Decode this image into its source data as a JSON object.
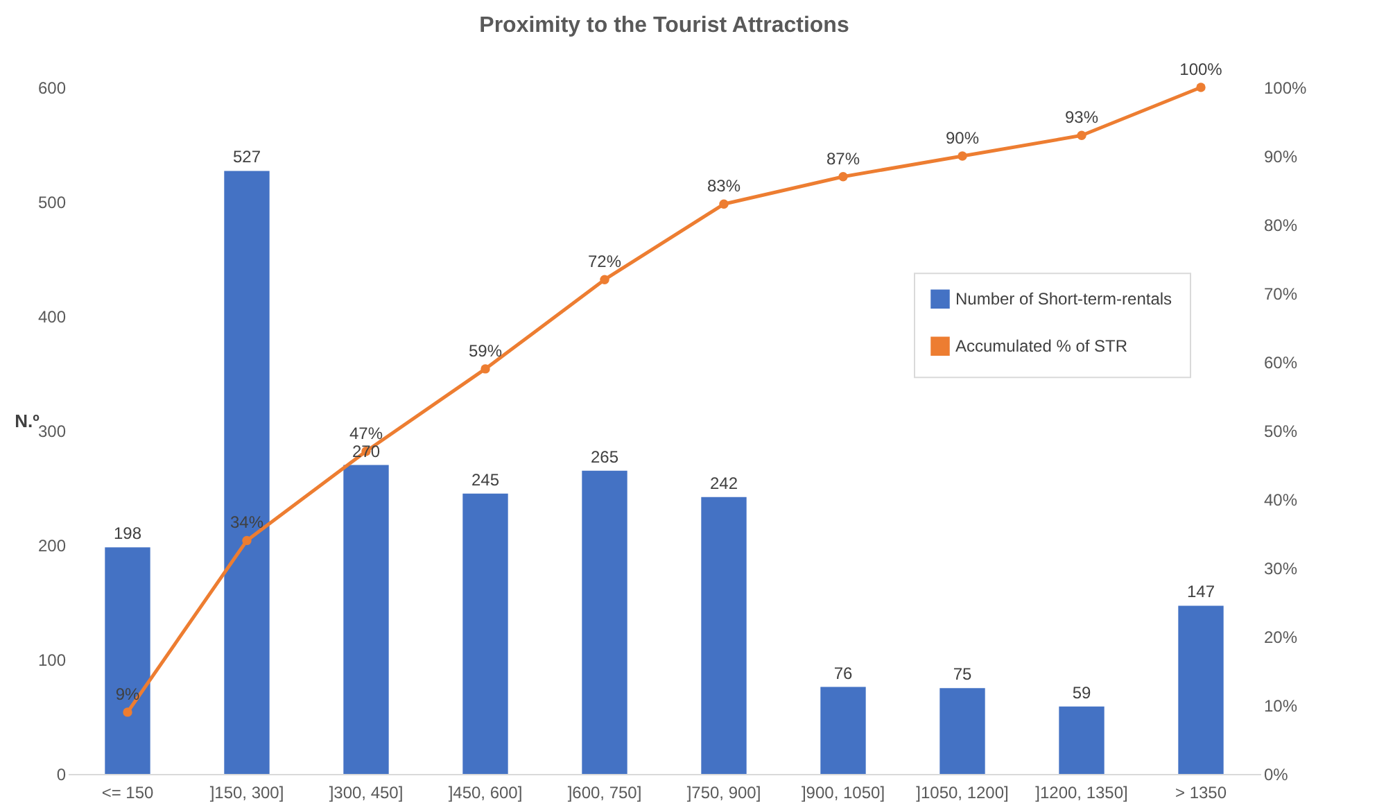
{
  "chart_data": {
    "type": "bar",
    "title": "Proximity to the Tourist Attractions",
    "ylabel": "N.º",
    "categories": [
      "<= 150",
      "]150, 300]",
      "]300, 450]",
      "]450, 600]",
      "]600, 750]",
      "]750, 900]",
      "]900, 1050]",
      "]1050, 1200]",
      "]1200, 1350]",
      "> 1350"
    ],
    "series": [
      {
        "name": "Number of Short-term-rentals",
        "color": "#4472c4",
        "values": [
          198,
          527,
          270,
          245,
          265,
          242,
          76,
          75,
          59,
          147
        ]
      },
      {
        "name": "Accumulated % of STR",
        "type": "line",
        "axis": "y2",
        "color": "#ed7d31",
        "values": [
          9,
          34,
          47,
          59,
          72,
          83,
          87,
          90,
          93,
          100
        ],
        "value_labels": [
          "9%",
          "34%",
          "47%",
          "59%",
          "72%",
          "83%",
          "87%",
          "90%",
          "93%",
          "100%"
        ]
      }
    ],
    "ylim": [
      0,
      600
    ],
    "yticks": [
      0,
      100,
      200,
      300,
      400,
      500,
      600
    ],
    "y2lim": [
      0,
      100
    ],
    "y2ticks": [
      {
        "value": 0,
        "label": "0%"
      },
      {
        "value": 10,
        "label": "10%"
      },
      {
        "value": 20,
        "label": "20%"
      },
      {
        "value": 30,
        "label": "30%"
      },
      {
        "value": 40,
        "label": "40%"
      },
      {
        "value": 50,
        "label": "50%"
      },
      {
        "value": 60,
        "label": "60%"
      },
      {
        "value": 70,
        "label": "70%"
      },
      {
        "value": 80,
        "label": "80%"
      },
      {
        "value": 90,
        "label": "90%"
      },
      {
        "value": 100,
        "label": "100%"
      }
    ],
    "data_labels": true,
    "legend": "right",
    "marker": "circle",
    "line_style": "solid"
  }
}
